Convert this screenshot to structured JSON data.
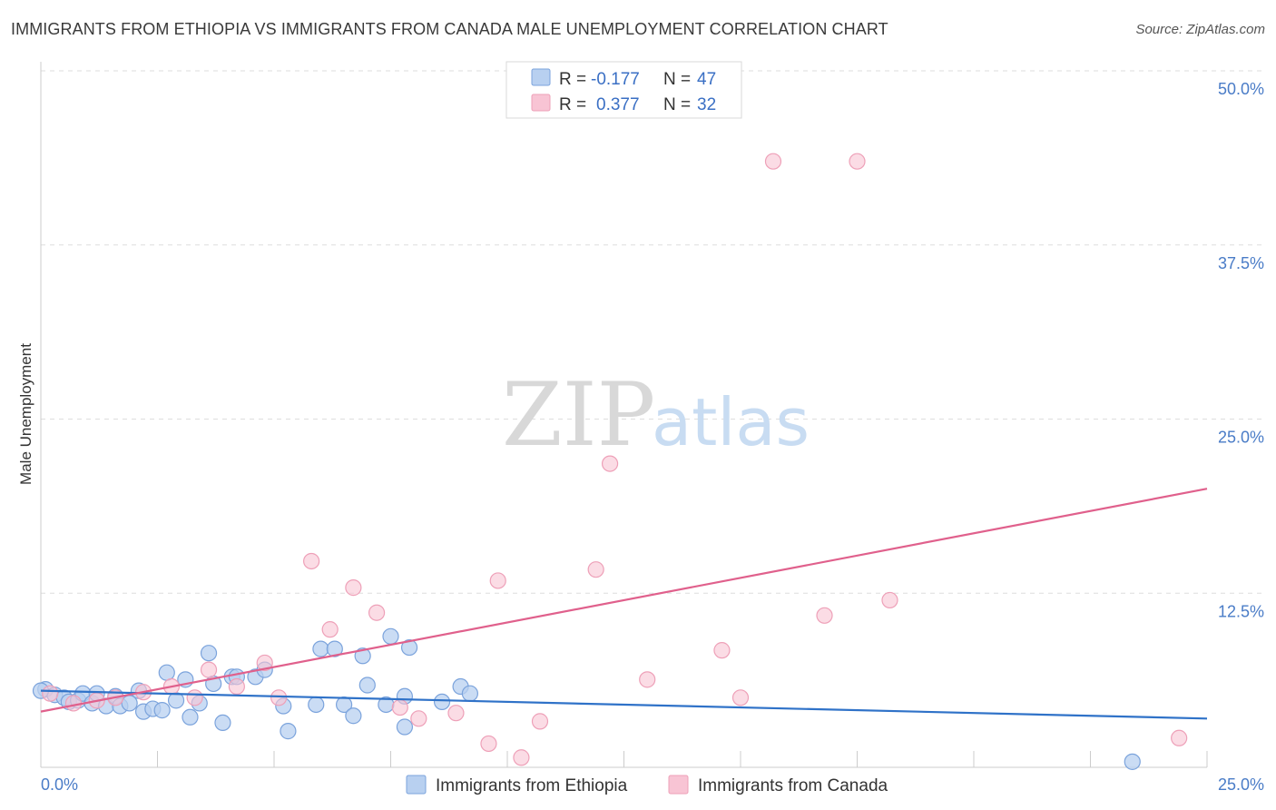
{
  "header": {
    "title": "IMMIGRANTS FROM ETHIOPIA VS IMMIGRANTS FROM CANADA MALE UNEMPLOYMENT CORRELATION CHART",
    "source": "Source: ZipAtlas.com"
  },
  "watermark": {
    "zip": "ZIP",
    "atlas": "atlas"
  },
  "colors": {
    "blue_fill": "#b8d0f0",
    "blue_stroke": "#7ba3dc",
    "blue_line": "#2f72c8",
    "pink_fill": "#f8c4d4",
    "pink_stroke": "#eea0b8",
    "pink_line": "#e0608c",
    "grid": "#dddddd",
    "tick_text": "#4a7cc7"
  },
  "legend": {
    "rows": [
      {
        "r_label": "R =",
        "r_value": "-0.177",
        "n_label": "N =",
        "n_value": "47"
      },
      {
        "r_label": "R =",
        "r_value": "0.377",
        "n_label": "N =",
        "n_value": "32"
      }
    ]
  },
  "chart_data": {
    "type": "scatter",
    "title": "IMMIGRANTS FROM ETHIOPIA VS IMMIGRANTS FROM CANADA MALE UNEMPLOYMENT CORRELATION CHART",
    "ylabel": "Male Unemployment",
    "xlabel": "",
    "xlim": [
      0,
      25
    ],
    "ylim": [
      0,
      50
    ],
    "y_ticks": [
      {
        "value": 12.5,
        "label": "12.5%"
      },
      {
        "value": 25,
        "label": "25.0%"
      },
      {
        "value": 37.5,
        "label": "37.5%"
      },
      {
        "value": 50,
        "label": "50.0%"
      }
    ],
    "x_tick_labels": [
      {
        "value": 0,
        "label": "0.0%"
      },
      {
        "value": 25,
        "label": "25.0%"
      }
    ],
    "x_minor_ticks": [
      2.5,
      5,
      7.5,
      10,
      12.5,
      15,
      17.5,
      20,
      22.5,
      25
    ],
    "series": [
      {
        "name": "Immigrants from Ethiopia",
        "color": "blue",
        "trend": {
          "x": [
            0,
            25
          ],
          "y": [
            5.5,
            3.5
          ]
        },
        "points": [
          [
            0.1,
            5.6
          ],
          [
            0.3,
            5.2
          ],
          [
            0.5,
            5.0
          ],
          [
            0.6,
            4.7
          ],
          [
            0.8,
            4.8
          ],
          [
            0.9,
            5.3
          ],
          [
            1.1,
            4.6
          ],
          [
            1.2,
            5.3
          ],
          [
            1.4,
            4.4
          ],
          [
            1.6,
            5.1
          ],
          [
            1.7,
            4.4
          ],
          [
            1.9,
            4.6
          ],
          [
            2.1,
            5.5
          ],
          [
            2.2,
            4.0
          ],
          [
            2.4,
            4.2
          ],
          [
            2.6,
            4.1
          ],
          [
            2.7,
            6.8
          ],
          [
            2.9,
            4.8
          ],
          [
            3.1,
            6.3
          ],
          [
            3.2,
            3.6
          ],
          [
            3.4,
            4.6
          ],
          [
            3.6,
            8.2
          ],
          [
            3.7,
            6.0
          ],
          [
            3.9,
            3.2
          ],
          [
            4.1,
            6.5
          ],
          [
            4.2,
            6.5
          ],
          [
            4.6,
            6.5
          ],
          [
            4.8,
            7.0
          ],
          [
            5.3,
            2.6
          ],
          [
            5.2,
            4.4
          ],
          [
            5.9,
            4.5
          ],
          [
            6.0,
            8.5
          ],
          [
            6.3,
            8.5
          ],
          [
            6.5,
            4.5
          ],
          [
            6.7,
            3.7
          ],
          [
            6.9,
            8.0
          ],
          [
            7.0,
            5.9
          ],
          [
            7.4,
            4.5
          ],
          [
            7.5,
            9.4
          ],
          [
            7.8,
            5.1
          ],
          [
            7.9,
            8.6
          ],
          [
            7.8,
            2.9
          ],
          [
            8.6,
            4.7
          ],
          [
            9.0,
            5.8
          ],
          [
            9.2,
            5.3
          ],
          [
            23.4,
            0.4
          ],
          [
            0.0,
            5.5
          ]
        ]
      },
      {
        "name": "Immigrants from Canada",
        "color": "pink",
        "trend": {
          "x": [
            0,
            25
          ],
          "y": [
            4.0,
            20.0
          ]
        },
        "points": [
          [
            0.2,
            5.3
          ],
          [
            0.7,
            4.6
          ],
          [
            1.2,
            4.8
          ],
          [
            1.6,
            5.0
          ],
          [
            2.2,
            5.4
          ],
          [
            2.8,
            5.8
          ],
          [
            3.3,
            5.0
          ],
          [
            3.6,
            7.0
          ],
          [
            4.2,
            5.8
          ],
          [
            4.8,
            7.5
          ],
          [
            5.1,
            5.0
          ],
          [
            5.8,
            14.8
          ],
          [
            6.2,
            9.9
          ],
          [
            6.7,
            12.9
          ],
          [
            7.2,
            11.1
          ],
          [
            7.7,
            4.3
          ],
          [
            8.1,
            3.5
          ],
          [
            8.9,
            3.9
          ],
          [
            9.6,
            1.7
          ],
          [
            9.8,
            13.4
          ],
          [
            10.3,
            0.7
          ],
          [
            10.7,
            3.3
          ],
          [
            11.9,
            14.2
          ],
          [
            12.2,
            21.8
          ],
          [
            13.0,
            6.3
          ],
          [
            14.6,
            8.4
          ],
          [
            15.0,
            5.0
          ],
          [
            15.7,
            43.5
          ],
          [
            16.8,
            10.9
          ],
          [
            17.5,
            43.5
          ],
          [
            18.2,
            12.0
          ],
          [
            24.4,
            2.1
          ]
        ]
      }
    ]
  }
}
